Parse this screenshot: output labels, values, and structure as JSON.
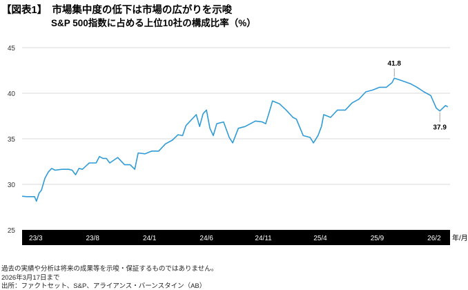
{
  "chart_data": {
    "type": "line",
    "title": "【図表1】　市場集中度の低下は市場の広がりを示唆",
    "subtitle": "S&P 500指数に占める上位10社の構成比率（%）",
    "xlabel": "年/月",
    "ylabel": "",
    "ylim": [
      25,
      45
    ],
    "yticks": [
      25,
      30,
      35,
      40,
      45
    ],
    "xlim": [
      -1.2,
      36.4
    ],
    "xticks": [
      0,
      5,
      10,
      15,
      20,
      25,
      30,
      35
    ],
    "xtick_labels": [
      "23/3",
      "23/8",
      "24/1",
      "24/6",
      "24/11",
      "25/4",
      "25/9",
      "26/2"
    ],
    "x_unit": "months since 2023/3",
    "grid": true,
    "color": "#2e9bd6",
    "series": [
      {
        "name": "上位10社の構成比率",
        "x": [
          -1.2,
          -0.8,
          -0.5,
          -0.1,
          0.06,
          0.3,
          0.5,
          0.8,
          1.1,
          1.4,
          1.7,
          2.3,
          2.9,
          3.2,
          3.5,
          3.8,
          4.1,
          4.7,
          5.3,
          5.6,
          5.9,
          6.2,
          6.5,
          7.2,
          7.8,
          8.3,
          8.7,
          9.0,
          9.6,
          10.2,
          10.8,
          11.4,
          12.0,
          12.5,
          12.9,
          13.2,
          13.5,
          14.1,
          14.4,
          14.7,
          15.0,
          15.3,
          15.6,
          15.9,
          16.5,
          17.0,
          17.3,
          17.8,
          18.4,
          19.3,
          19.9,
          20.2,
          20.5,
          20.8,
          21.4,
          22.0,
          22.6,
          22.9,
          23.5,
          24.1,
          24.4,
          24.8,
          25.1,
          25.3,
          25.9,
          26.5,
          27.2,
          27.8,
          28.4,
          29.0,
          29.6,
          30.2,
          30.8,
          31.3,
          31.5,
          32.0,
          32.9,
          33.5,
          34.1,
          34.7,
          35.2,
          35.5,
          36.0,
          36.2
        ],
        "y": [
          28.7,
          28.5,
          28.8,
          28.5,
          28.3,
          28.9,
          29.5,
          30.5,
          31.5,
          31.6,
          31.7,
          31.5,
          31.8,
          31.4,
          31.2,
          31.6,
          31.8,
          32.2,
          32.5,
          32.9,
          33.0,
          32.7,
          32.5,
          32.8,
          32.3,
          32.0,
          31.8,
          33.3,
          33.5,
          33.5,
          33.8,
          34.3,
          35.0,
          35.3,
          35.5,
          36.3,
          37.0,
          37.5,
          36.5,
          37.6,
          38.3,
          36.0,
          35.5,
          36.5,
          37.0,
          35.0,
          34.7,
          36.0,
          36.5,
          36.8,
          37.0,
          36.5,
          38.0,
          39.0,
          39.0,
          38.0,
          37.5,
          37.0,
          35.5,
          35.0,
          34.7,
          35.2,
          36.5,
          37.5,
          37.5,
          38.0,
          38.3,
          38.8,
          39.5,
          40.0,
          40.5,
          40.5,
          40.8,
          41.0,
          41.8,
          41.3,
          41.2,
          40.5,
          40.3,
          39.6,
          38.5,
          37.9,
          38.8,
          38.5
        ]
      }
    ],
    "annotations": [
      {
        "x": 31.5,
        "y": 41.8,
        "text": "41.8",
        "position": "above"
      },
      {
        "x": 35.5,
        "y": 37.9,
        "text": "37.9",
        "position": "below"
      }
    ]
  },
  "notes": [
    "過去の実績や分析は将来の成果等を示唆・保証するものではありません。",
    "2026年3月17日まで",
    "出所：ファクトセット、S&P、アライアンス・バーンスタイン（AB）"
  ]
}
